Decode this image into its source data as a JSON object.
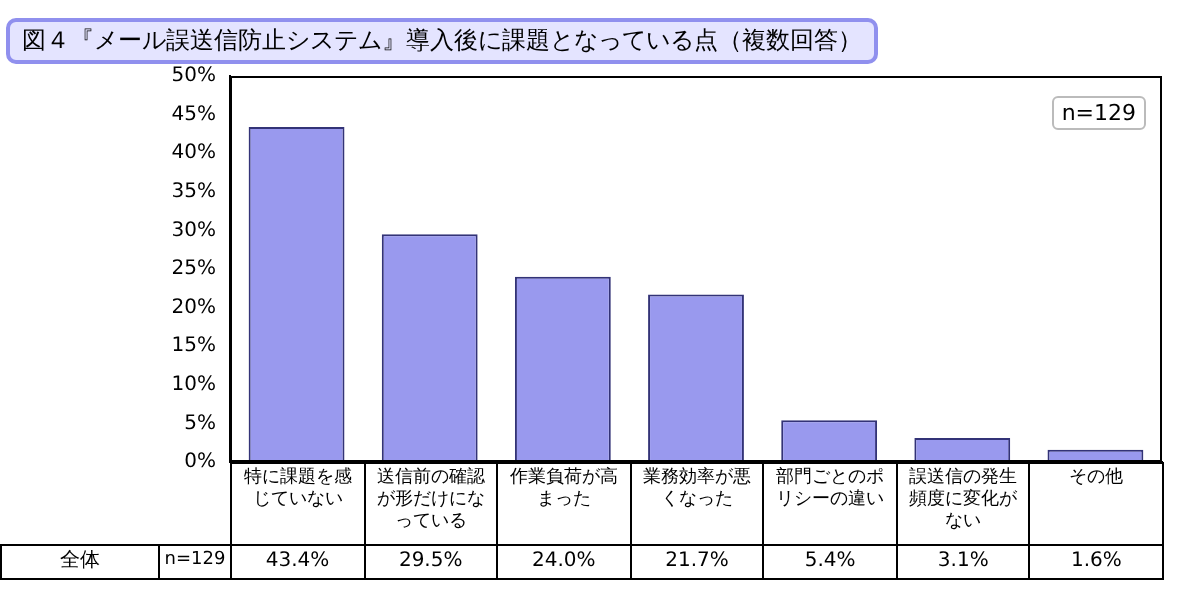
{
  "chart_data": {
    "type": "bar",
    "title": "図４『メール誤送信防止システム』導入後に課題となっている点（複数回答）",
    "categories": [
      "特に課題を感じていない",
      "送信前の確認が形だけになっている",
      "作業負荷が高まった",
      "業務効率が悪くなった",
      "部門ごとのポリシーの違い",
      "誤送信の発生頻度に変化がない",
      "その他"
    ],
    "series": [
      {
        "name": "全体",
        "color": "#9999ee",
        "values": [
          43.4,
          29.5,
          24.0,
          21.7,
          5.4,
          3.1,
          1.6
        ],
        "value_labels": [
          "43.4%",
          "29.5%",
          "24.0%",
          "21.7%",
          "5.4%",
          "3.1%",
          "1.6%"
        ]
      }
    ],
    "ylim": [
      0,
      50
    ],
    "yticks": [
      {
        "value": 0,
        "label": "0%"
      },
      {
        "value": 5,
        "label": "5%"
      },
      {
        "value": 10,
        "label": "10%"
      },
      {
        "value": 15,
        "label": "15%"
      },
      {
        "value": 20,
        "label": "20%"
      },
      {
        "value": 25,
        "label": "25%"
      },
      {
        "value": 30,
        "label": "30%"
      },
      {
        "value": 35,
        "label": "35%"
      },
      {
        "value": 40,
        "label": "40%"
      },
      {
        "value": 45,
        "label": "45%"
      },
      {
        "value": 50,
        "label": "50%"
      }
    ],
    "grid": false,
    "legend": false,
    "annotations": [
      "n=129"
    ]
  }
}
